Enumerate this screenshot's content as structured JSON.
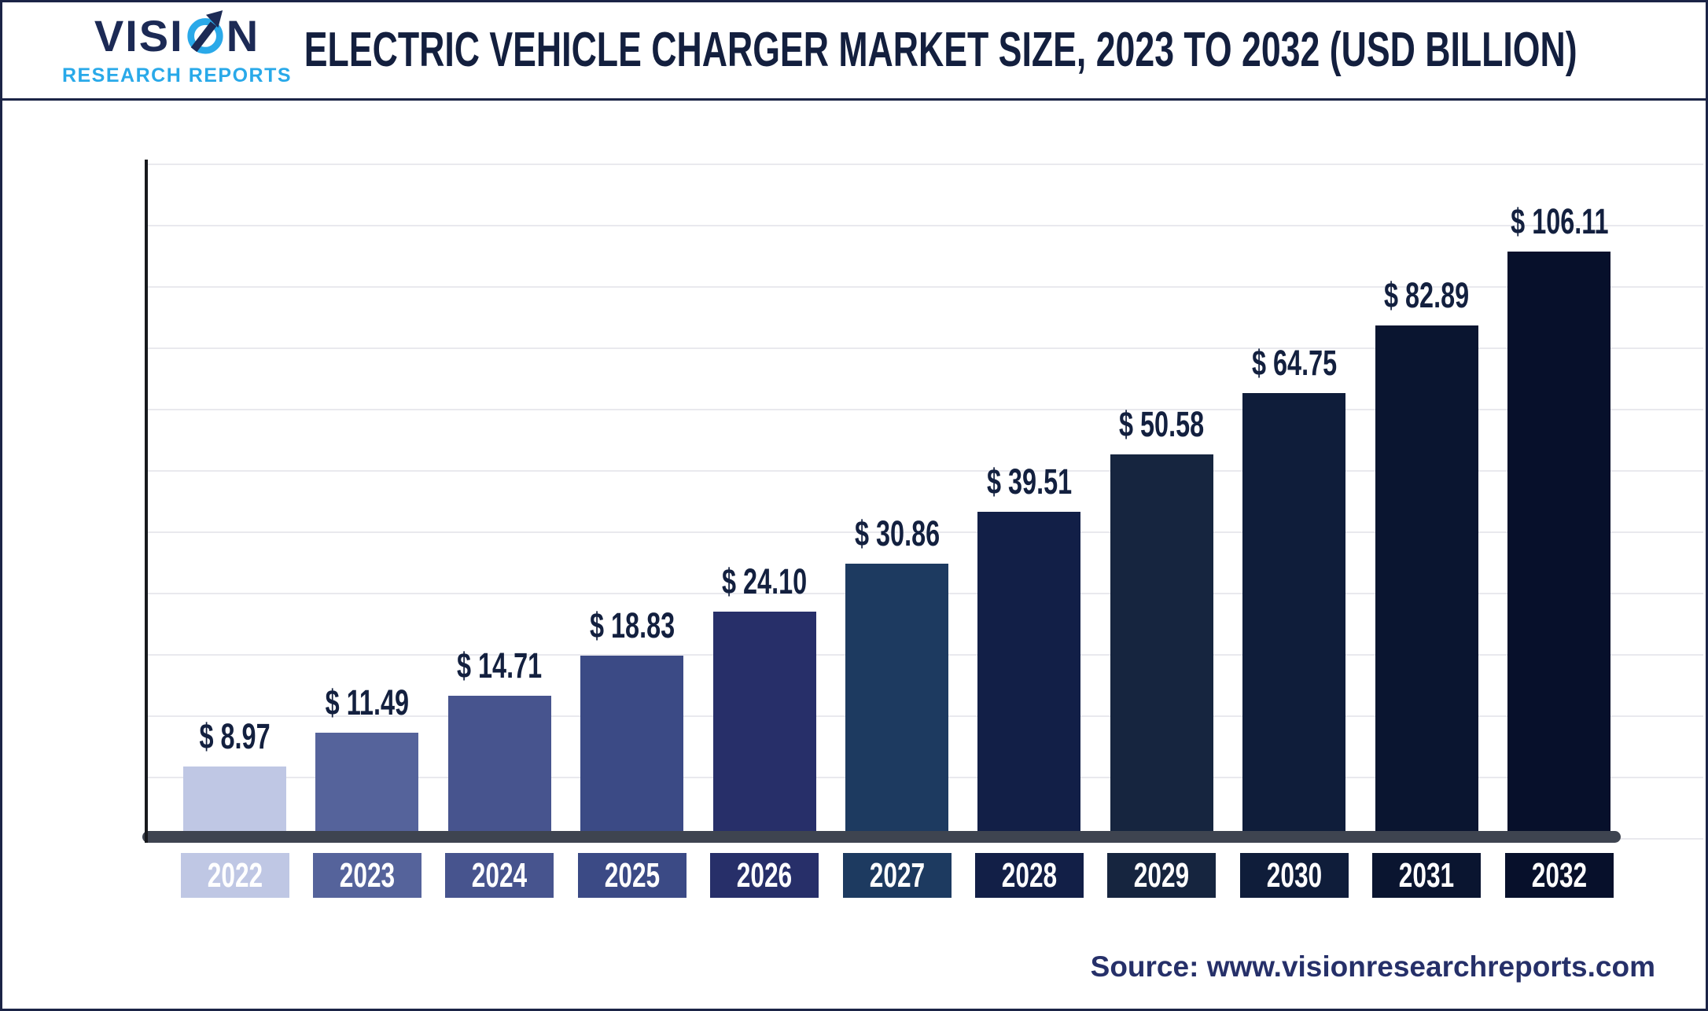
{
  "logo": {
    "brand_prefix": "VISI",
    "brand_suffix": "N",
    "subtitle": "RESEARCH REPORTS",
    "brand_color": "#1c2a55",
    "subtitle_color": "#29a9e9"
  },
  "chart_data": {
    "type": "bar",
    "title": "ELECTRIC VEHICLE CHARGER MARKET SIZE, 2023 TO 2032 (USD BILLION)",
    "unit": "USD Billion",
    "categories": [
      "2022",
      "2023",
      "2024",
      "2025",
      "2026",
      "2027",
      "2028",
      "2029",
      "2030",
      "2031",
      "2032"
    ],
    "values": [
      8.97,
      11.49,
      14.71,
      18.83,
      24.1,
      30.86,
      39.51,
      50.58,
      64.75,
      82.89,
      106.11
    ],
    "value_labels": [
      "$ 8.97",
      "$ 11.49",
      "$ 14.71",
      "$ 18.83",
      "$ 24.10",
      "$ 30.86",
      "$ 39.51",
      "$ 50.58",
      "$ 64.75",
      "$ 82.89",
      "$ 106.11"
    ],
    "bar_colors": [
      "#bfc7e4",
      "#55639b",
      "#47548e",
      "#3b4a85",
      "#272f69",
      "#1d3a60",
      "#121f47",
      "#16253f",
      "#0f1d3a",
      "#0a1530",
      "#07102b"
    ],
    "grid": true,
    "gridline_color": "#e9e9ee",
    "axis_color": "#17191d",
    "baseline_color": "#3e4450",
    "value_label_color": "#13203f",
    "xlabel": "",
    "ylabel": ""
  },
  "source": {
    "label": "Source:",
    "url": "www.visionresearchreports.com"
  }
}
